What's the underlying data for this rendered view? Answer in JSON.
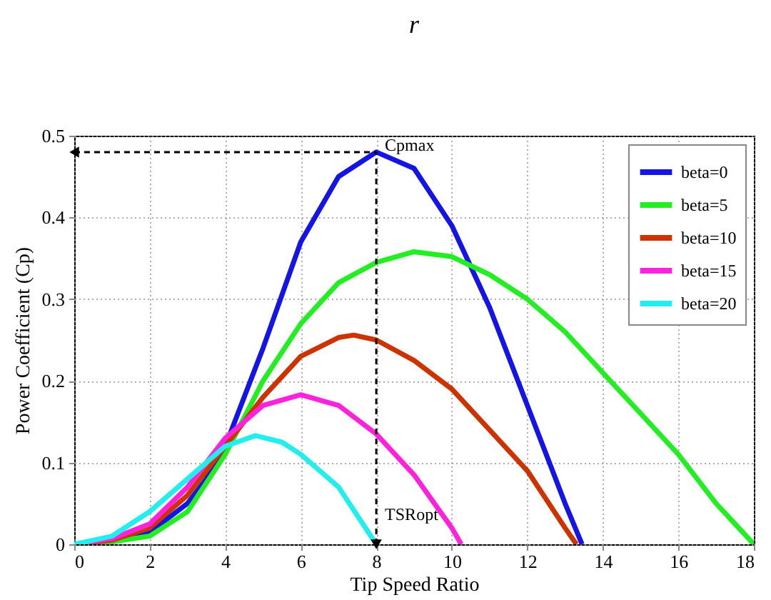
{
  "chart_data": {
    "type": "line",
    "title": "r",
    "xlabel": "Tip Speed Ratio",
    "ylabel": "Power Coefficient (Cp)",
    "xlim": [
      0,
      18
    ],
    "xticks": [
      0,
      2,
      4,
      6,
      8,
      10,
      12,
      14,
      16,
      18
    ],
    "ylim": [
      0,
      0.5
    ],
    "yticks": [
      0,
      0.1,
      0.2,
      0.3,
      0.4,
      0.5
    ],
    "grid": true,
    "legend": "top right",
    "ref_lines": [
      {
        "axis": "y",
        "value": 0.48,
        "label": "Cpmax",
        "color": "#000000",
        "line_style": "dashed"
      },
      {
        "axis": "x",
        "value": 8,
        "label": "TSRopt",
        "color": "#000000",
        "line_style": "dashed"
      }
    ],
    "series": [
      {
        "name": "beta=0",
        "color": "#1414e6",
        "x": [
          0,
          1,
          2,
          3,
          3.5,
          4,
          5,
          6,
          7,
          8,
          9,
          10,
          11,
          12,
          13,
          13.45
        ],
        "values": [
          0,
          0.003,
          0.015,
          0.05,
          0.08,
          0.12,
          0.24,
          0.37,
          0.45,
          0.48,
          0.46,
          0.39,
          0.29,
          0.17,
          0.05,
          0
        ]
      },
      {
        "name": "beta=5",
        "color": "#22ee22",
        "x": [
          0,
          1,
          2,
          3,
          4,
          5,
          6,
          7,
          8,
          9,
          10,
          11,
          12,
          13,
          14,
          15,
          16,
          17,
          18
        ],
        "values": [
          0,
          0.003,
          0.01,
          0.04,
          0.11,
          0.2,
          0.27,
          0.32,
          0.345,
          0.358,
          0.352,
          0.33,
          0.3,
          0.26,
          0.21,
          0.16,
          0.11,
          0.05,
          0
        ]
      },
      {
        "name": "beta=10",
        "color": "#cc3300",
        "x": [
          0,
          1,
          2,
          3,
          4,
          5,
          6,
          7,
          7.4,
          8,
          9,
          10,
          11,
          12,
          13,
          13.3
        ],
        "values": [
          0,
          0.005,
          0.02,
          0.06,
          0.12,
          0.18,
          0.23,
          0.253,
          0.256,
          0.25,
          0.225,
          0.19,
          0.14,
          0.09,
          0.02,
          0
        ]
      },
      {
        "name": "beta=15",
        "color": "#ff22dd",
        "x": [
          0,
          1,
          2,
          3,
          4,
          5,
          6,
          7,
          8,
          9,
          10,
          10.25
        ],
        "values": [
          0,
          0.007,
          0.025,
          0.07,
          0.13,
          0.17,
          0.183,
          0.17,
          0.135,
          0.085,
          0.02,
          0
        ]
      },
      {
        "name": "beta=20",
        "color": "#22eeee",
        "x": [
          0,
          1,
          2,
          3,
          4,
          4.8,
          5.5,
          6,
          7,
          8
        ],
        "values": [
          0,
          0.01,
          0.04,
          0.08,
          0.12,
          0.133,
          0.125,
          0.11,
          0.07,
          0
        ]
      }
    ]
  }
}
